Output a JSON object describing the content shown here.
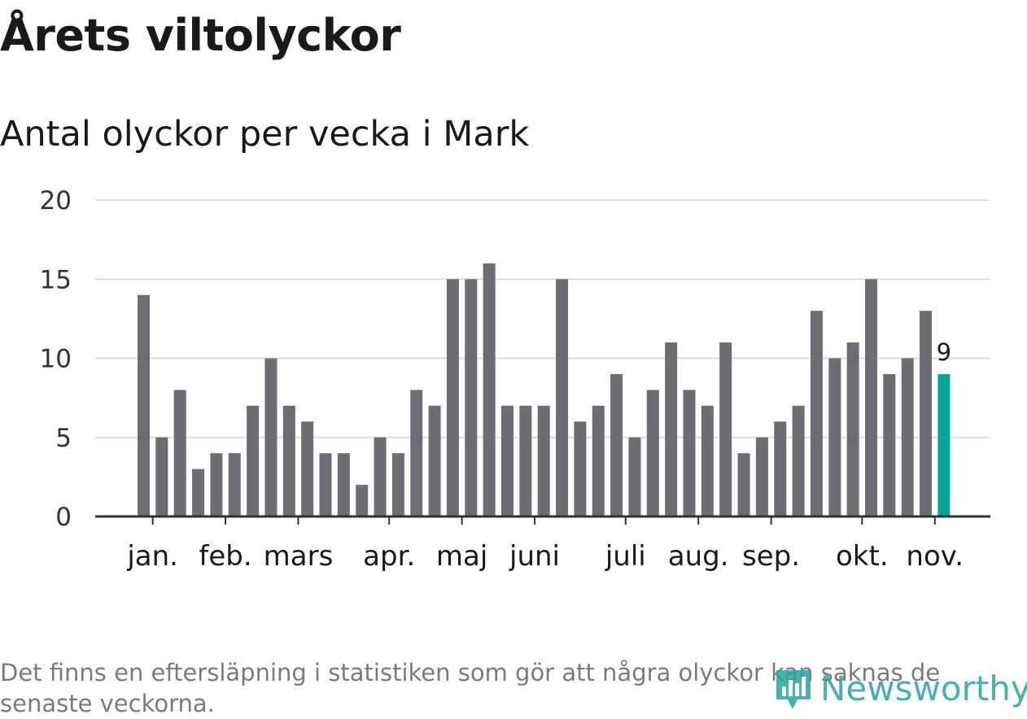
{
  "title": "Årets viltolyckor",
  "subtitle": "Antal olyckor per vecka i Mark",
  "note": "Det finns en eftersläpning i statistiken som gör att några olyckor kan saknas de senaste veckorna.",
  "logo_text": "Newsworthy",
  "colors": {
    "bar": "#6e6d73",
    "highlight": "#06a49a",
    "grid": "#dddddd",
    "axis": "#333333"
  },
  "chart_data": {
    "type": "bar",
    "title": "Årets viltolyckor",
    "subtitle": "Antal olyckor per vecka i Mark",
    "ylim": [
      0,
      20
    ],
    "yticks": [
      0,
      5,
      10,
      15,
      20
    ],
    "grid": true,
    "values": [
      14,
      5,
      8,
      3,
      4,
      4,
      7,
      10,
      7,
      6,
      4,
      4,
      2,
      5,
      4,
      8,
      7,
      15,
      15,
      16,
      7,
      7,
      7,
      15,
      6,
      7,
      9,
      5,
      8,
      11,
      8,
      7,
      11,
      4,
      5,
      6,
      7,
      13,
      10,
      11,
      15,
      9,
      10,
      13,
      9
    ],
    "month_labels": [
      {
        "label": "jan.",
        "week_index": 0.5
      },
      {
        "label": "feb.",
        "week_index": 4.5
      },
      {
        "label": "mars",
        "week_index": 8.5
      },
      {
        "label": "apr.",
        "week_index": 13.5
      },
      {
        "label": "maj",
        "week_index": 17.5
      },
      {
        "label": "juni",
        "week_index": 21.5
      },
      {
        "label": "juli",
        "week_index": 26.5
      },
      {
        "label": "aug.",
        "week_index": 30.5
      },
      {
        "label": "sep.",
        "week_index": 34.5
      },
      {
        "label": "okt.",
        "week_index": 39.5
      },
      {
        "label": "nov.",
        "week_index": 43.5
      }
    ],
    "highlight_index": 44,
    "highlight_label": "9"
  }
}
